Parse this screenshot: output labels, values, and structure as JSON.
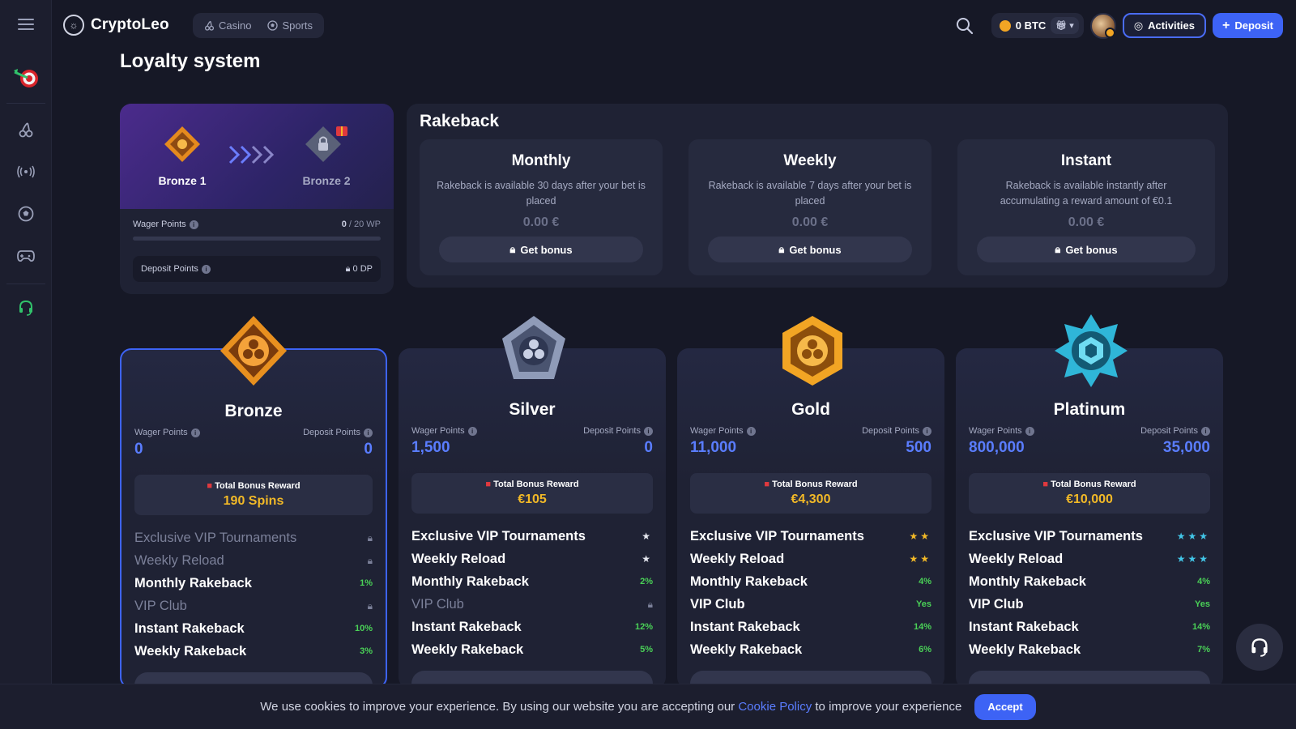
{
  "header": {
    "logo_text": "CryptoLeo",
    "tabs": [
      {
        "label": "Casino"
      },
      {
        "label": "Sports"
      }
    ],
    "balance": "0 BTC",
    "activities_label": "Activities",
    "deposit_label": "Deposit"
  },
  "page": {
    "title": "Loyalty system"
  },
  "level": {
    "current": "Bronze 1",
    "next": "Bronze 2",
    "wager_label": "Wager Points",
    "wager_current": "0",
    "wager_target": "/ 20 WP",
    "wager_progress": 0,
    "deposit_label": "Deposit Points",
    "deposit_value": "0 DP"
  },
  "rakeback": {
    "title": "Rakeback",
    "cards": [
      {
        "title": "Monthly",
        "desc": "Rakeback is available 30 days after your bet is placed",
        "value": "0.00 €",
        "button": "Get bonus"
      },
      {
        "title": "Weekly",
        "desc": "Rakeback is available 7 days after your bet is placed",
        "value": "0.00 €",
        "button": "Get bonus"
      },
      {
        "title": "Instant",
        "desc": "Rakeback is available instantly after accumulating a reward amount of €0.1",
        "value": "0.00 €",
        "button": "Get bonus"
      }
    ]
  },
  "tiers": [
    {
      "name": "Bronze",
      "wager_label": "Wager Points",
      "deposit_label": "Deposit Points",
      "wager": "0",
      "deposit": "0",
      "reward_label": "Total Bonus Reward",
      "reward": "190 Spins",
      "features": [
        {
          "label": "Exclusive VIP Tournaments",
          "value": ""
        },
        {
          "label": "Weekly Reload",
          "value": ""
        },
        {
          "label": "Monthly Rakeback",
          "value": "1%"
        },
        {
          "label": "VIP Club",
          "value": ""
        },
        {
          "label": "Instant Rakeback",
          "value": "10%"
        },
        {
          "label": "Weekly Rakeback",
          "value": "3%"
        }
      ]
    },
    {
      "name": "Silver",
      "wager_label": "Wager Points",
      "deposit_label": "Deposit Points",
      "wager": "1,500",
      "deposit": "0",
      "reward_label": "Total Bonus Reward",
      "reward": "€105",
      "features": [
        {
          "label": "Exclusive VIP Tournaments",
          "value": ""
        },
        {
          "label": "Weekly Reload",
          "value": ""
        },
        {
          "label": "Monthly Rakeback",
          "value": "2%"
        },
        {
          "label": "VIP Club",
          "value": ""
        },
        {
          "label": "Instant Rakeback",
          "value": "12%"
        },
        {
          "label": "Weekly Rakeback",
          "value": "5%"
        }
      ]
    },
    {
      "name": "Gold",
      "wager_label": "Wager Points",
      "deposit_label": "Deposit Points",
      "wager": "11,000",
      "deposit": "500",
      "reward_label": "Total Bonus Reward",
      "reward": "€4,300",
      "features": [
        {
          "label": "Exclusive VIP Tournaments",
          "value": ""
        },
        {
          "label": "Weekly Reload",
          "value": ""
        },
        {
          "label": "Monthly Rakeback",
          "value": "4%"
        },
        {
          "label": "VIP Club",
          "value": "Yes"
        },
        {
          "label": "Instant Rakeback",
          "value": "14%"
        },
        {
          "label": "Weekly Rakeback",
          "value": "6%"
        }
      ]
    },
    {
      "name": "Platinum",
      "wager_label": "Wager Points",
      "deposit_label": "Deposit Points",
      "wager": "800,000",
      "deposit": "35,000",
      "reward_label": "Total Bonus Reward",
      "reward": "€10,000",
      "features": [
        {
          "label": "Exclusive VIP Tournaments",
          "value": ""
        },
        {
          "label": "Weekly Reload",
          "value": ""
        },
        {
          "label": "Monthly Rakeback",
          "value": "4%"
        },
        {
          "label": "VIP Club",
          "value": "Yes"
        },
        {
          "label": "Instant Rakeback",
          "value": "14%"
        },
        {
          "label": "Weekly Rakeback",
          "value": "7%"
        }
      ]
    }
  ],
  "cookie": {
    "text_before": "We use cookies to improve your experience. By using our website you are accepting our",
    "link": "Cookie Policy",
    "text_after": "to improve your experience",
    "accept": "Accept"
  },
  "colors": {
    "accent": "#3d63f5",
    "gold": "#f2b927",
    "green": "#4ad157",
    "background": "#161826"
  }
}
